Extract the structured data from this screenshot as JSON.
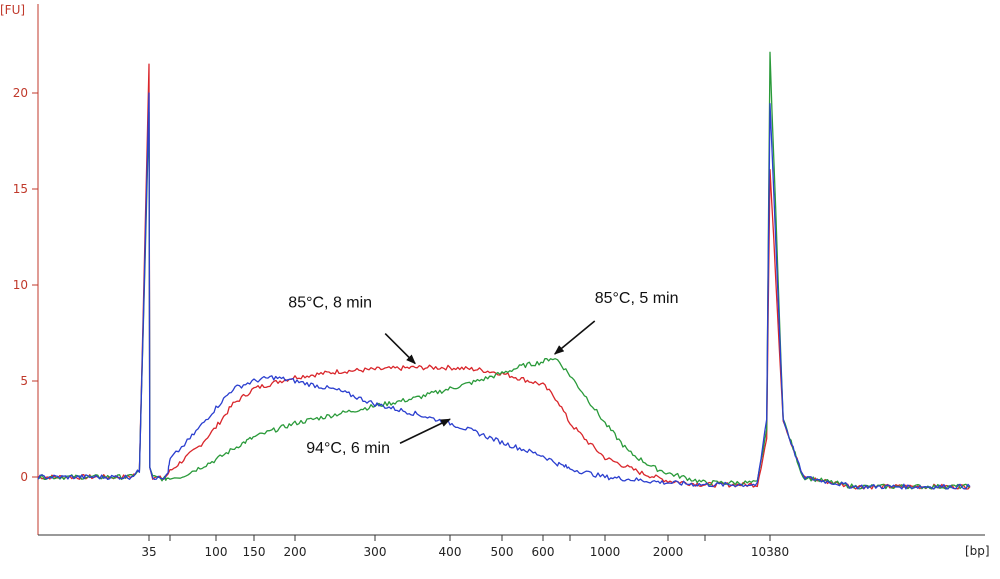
{
  "chart_data": {
    "type": "line",
    "ylabel": "[FU]",
    "xlabel": "[bp]",
    "ylim": [
      -3,
      24
    ],
    "y_ticks": [
      0,
      5,
      10,
      15,
      20
    ],
    "y_tick_labels": [
      "0",
      "5",
      "10",
      "15",
      "20"
    ],
    "x_ticks": [
      35,
      100,
      150,
      200,
      300,
      400,
      500,
      600,
      1000,
      2000,
      10380
    ],
    "x_tick_labels": [
      "35",
      "100",
      "150",
      "200",
      "300",
      "400",
      "500",
      "600",
      "1000",
      "2000",
      "10380"
    ],
    "x_minor_ticks": [
      75,
      800,
      5000
    ],
    "x_scale": "ladder (non-linear)",
    "grid": false,
    "series": [
      {
        "name": "85°C, 8 min",
        "color": "#d9262b",
        "points": [
          [
            25,
            0
          ],
          [
            33,
            0
          ],
          [
            34,
            0.3
          ],
          [
            35,
            21.5
          ],
          [
            36,
            0.5
          ],
          [
            40,
            0
          ],
          [
            60,
            -0.1
          ],
          [
            75,
            0.3
          ],
          [
            90,
            1.6
          ],
          [
            100,
            2.6
          ],
          [
            120,
            3.8
          ],
          [
            150,
            4.6
          ],
          [
            180,
            5.0
          ],
          [
            200,
            5.2
          ],
          [
            250,
            5.5
          ],
          [
            300,
            5.6
          ],
          [
            350,
            5.7
          ],
          [
            400,
            5.7
          ],
          [
            450,
            5.6
          ],
          [
            500,
            5.4
          ],
          [
            600,
            4.8
          ],
          [
            700,
            4.0
          ],
          [
            800,
            2.8
          ],
          [
            900,
            1.8
          ],
          [
            1000,
            1.0
          ],
          [
            1500,
            0.2
          ],
          [
            2000,
            -0.2
          ],
          [
            5000,
            -0.4
          ],
          [
            9000,
            -0.4
          ],
          [
            10000,
            2.0
          ],
          [
            10380,
            16.0
          ],
          [
            11000,
            3.0
          ],
          [
            12000,
            0
          ],
          [
            15000,
            -0.5
          ],
          [
            25000,
            -0.5
          ]
        ]
      },
      {
        "name": "85°C, 5 min",
        "color": "#2a9a3a",
        "points": [
          [
            25,
            0
          ],
          [
            33,
            0
          ],
          [
            34,
            0.3
          ],
          [
            35,
            19.0
          ],
          [
            36,
            0.5
          ],
          [
            40,
            0
          ],
          [
            60,
            -0.1
          ],
          [
            80,
            0
          ],
          [
            100,
            0.9
          ],
          [
            130,
            1.7
          ],
          [
            170,
            2.4
          ],
          [
            200,
            2.8
          ],
          [
            250,
            3.3
          ],
          [
            300,
            3.7
          ],
          [
            350,
            4.1
          ],
          [
            400,
            4.6
          ],
          [
            450,
            5.0
          ],
          [
            500,
            5.4
          ],
          [
            550,
            5.8
          ],
          [
            600,
            6.0
          ],
          [
            650,
            6.2
          ],
          [
            700,
            6.1
          ],
          [
            800,
            5.3
          ],
          [
            900,
            4.0
          ],
          [
            1000,
            2.8
          ],
          [
            1300,
            1.3
          ],
          [
            1700,
            0.5
          ],
          [
            2000,
            0.2
          ],
          [
            5000,
            -0.3
          ],
          [
            9000,
            -0.3
          ],
          [
            10000,
            2.5
          ],
          [
            10380,
            22.0
          ],
          [
            11000,
            3.0
          ],
          [
            12000,
            0
          ],
          [
            15000,
            -0.5
          ],
          [
            25000,
            -0.5
          ]
        ]
      },
      {
        "name": "94°C, 6 min",
        "color": "#2b3fcf",
        "points": [
          [
            25,
            0
          ],
          [
            33,
            0
          ],
          [
            34,
            0.3
          ],
          [
            35,
            20.0
          ],
          [
            36,
            0.5
          ],
          [
            40,
            0
          ],
          [
            60,
            -0.1
          ],
          [
            70,
            0.3
          ],
          [
            85,
            2.0
          ],
          [
            100,
            3.6
          ],
          [
            120,
            4.6
          ],
          [
            150,
            5.0
          ],
          [
            170,
            5.2
          ],
          [
            200,
            5.0
          ],
          [
            250,
            4.5
          ],
          [
            300,
            3.8
          ],
          [
            350,
            3.3
          ],
          [
            400,
            2.8
          ],
          [
            450,
            2.3
          ],
          [
            500,
            1.8
          ],
          [
            600,
            1.1
          ],
          [
            700,
            0.7
          ],
          [
            1000,
            0
          ],
          [
            2000,
            -0.3
          ],
          [
            5000,
            -0.4
          ],
          [
            9000,
            -0.4
          ],
          [
            10000,
            3.0
          ],
          [
            10380,
            19.5
          ],
          [
            11000,
            3.0
          ],
          [
            12000,
            0
          ],
          [
            15000,
            -0.5
          ],
          [
            25000,
            -0.5
          ]
        ]
      }
    ],
    "annotations": [
      {
        "text": "85°C, 8 min",
        "series": 0,
        "target": [
          350,
          5.7
        ]
      },
      {
        "text": "85°C, 5 min",
        "series": 1,
        "target": [
          680,
          6.2
        ]
      },
      {
        "text": "94°C, 6 min",
        "series": 2,
        "target": [
          400,
          2.8
        ]
      }
    ]
  }
}
